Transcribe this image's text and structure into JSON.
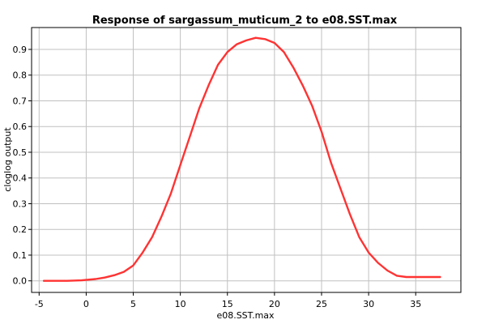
{
  "chart_data": {
    "type": "line",
    "title": "Response of sargassum_muticum_2 to e08.SST.max",
    "xlabel": "e08.SST.max",
    "ylabel": "cloglog output",
    "xlim": [
      -5.8,
      39.8
    ],
    "ylim": [
      -0.045,
      0.985
    ],
    "xticks": [
      -5,
      0,
      5,
      10,
      15,
      20,
      25,
      30,
      35
    ],
    "yticks": [
      0.0,
      0.1,
      0.2,
      0.3,
      0.4,
      0.5,
      0.6,
      0.7,
      0.8,
      0.9
    ],
    "ytick_labels": [
      "0.0",
      "0.1",
      "0.2",
      "0.3",
      "0.4",
      "0.5",
      "0.6",
      "0.7",
      "0.8",
      "0.9"
    ],
    "grid": true,
    "series": [
      {
        "color": "#ff3333",
        "x": [
          -4.5,
          -2,
          -0.5,
          1,
          2,
          3,
          4,
          5,
          6,
          7,
          8,
          9,
          10,
          11,
          12,
          13,
          14,
          15,
          16,
          17,
          18,
          19,
          20,
          21,
          22,
          23,
          24,
          25,
          26,
          27,
          28,
          29,
          30,
          31,
          32,
          33,
          34,
          35,
          36,
          37.6
        ],
        "y": [
          0.0,
          0.0,
          0.002,
          0.007,
          0.013,
          0.022,
          0.035,
          0.06,
          0.11,
          0.17,
          0.25,
          0.34,
          0.45,
          0.56,
          0.67,
          0.76,
          0.84,
          0.89,
          0.92,
          0.935,
          0.945,
          0.94,
          0.925,
          0.89,
          0.83,
          0.76,
          0.68,
          0.58,
          0.46,
          0.36,
          0.26,
          0.17,
          0.11,
          0.07,
          0.04,
          0.02,
          0.015,
          0.015,
          0.015,
          0.015
        ]
      }
    ]
  }
}
